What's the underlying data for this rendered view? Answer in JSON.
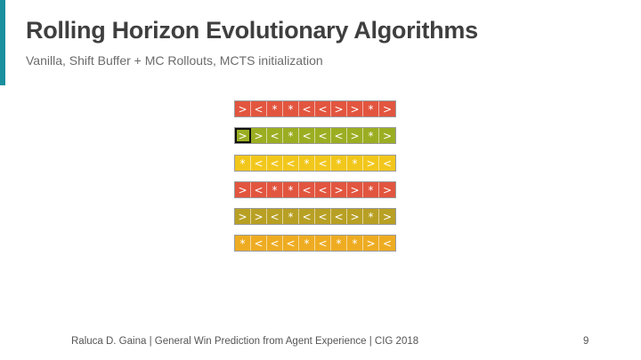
{
  "slide": {
    "title": "Rolling Horizon Evolutionary Algorithms",
    "subtitle": "Vanilla, Shift Buffer + MC Rollouts, MCTS initialization",
    "footer": "Raluca D. Gaina | General Win Prediction from Agent Experience | CIG 2018",
    "page_number": "9",
    "accent_color": "#1a8f9e"
  },
  "sequences": [
    {
      "color": "#e2553f",
      "actions": [
        ">",
        "<",
        "*",
        "*",
        "<",
        "<",
        ">",
        ">",
        "*",
        ">"
      ],
      "selected_index": null
    },
    {
      "color": "#9bae22",
      "actions": [
        ">",
        ">",
        "<",
        "*",
        "<",
        "<",
        "<",
        ">",
        "*",
        ">"
      ],
      "selected_index": 0
    },
    {
      "color": "#f2c71c",
      "actions": [
        "*",
        "<",
        "<",
        "<",
        "*",
        "<",
        "*",
        "*",
        ">",
        "<"
      ],
      "selected_index": null
    },
    {
      "color": "#e2553f",
      "actions": [
        ">",
        "<",
        "*",
        "*",
        "<",
        "<",
        ">",
        ">",
        "*",
        ">"
      ],
      "selected_index": null
    },
    {
      "color": "#b8a024",
      "actions": [
        ">",
        ">",
        "<",
        "*",
        "<",
        "<",
        "<",
        ">",
        "*",
        ">"
      ],
      "selected_index": null
    },
    {
      "color": "#eeac22",
      "actions": [
        "*",
        "<",
        "<",
        "<",
        "*",
        "<",
        "*",
        "*",
        ">",
        "<"
      ],
      "selected_index": null
    }
  ]
}
